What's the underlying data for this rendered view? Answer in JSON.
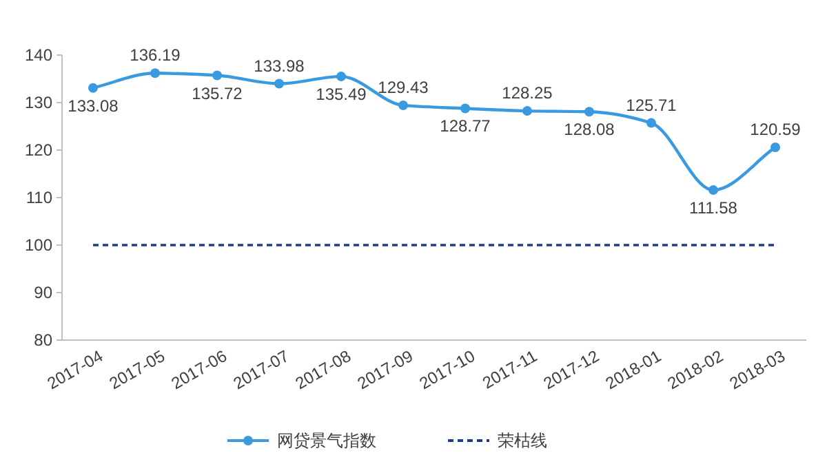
{
  "chart_data": {
    "type": "line",
    "categories": [
      "2017-04",
      "2017-05",
      "2017-06",
      "2017-07",
      "2017-08",
      "2017-09",
      "2017-10",
      "2017-11",
      "2017-12",
      "2018-01",
      "2018-02",
      "2018-03"
    ],
    "series": [
      {
        "name": "网贷景气指数",
        "color": "#3a9ae0",
        "values": [
          133.08,
          136.19,
          135.72,
          133.98,
          135.49,
          129.43,
          128.77,
          128.25,
          128.08,
          125.71,
          111.58,
          120.59
        ]
      }
    ],
    "ref_lines": [
      {
        "axis": "y",
        "value": 100,
        "label": "荣枯线",
        "color": "#1f3c88",
        "line_style": "dashed"
      }
    ],
    "ylim": [
      80,
      140
    ],
    "yticks": [
      80,
      90,
      100,
      110,
      120,
      130,
      140
    ],
    "data_labels": true,
    "marker": "circle",
    "line_style": "solid",
    "legend": "bottom",
    "grid": false
  }
}
